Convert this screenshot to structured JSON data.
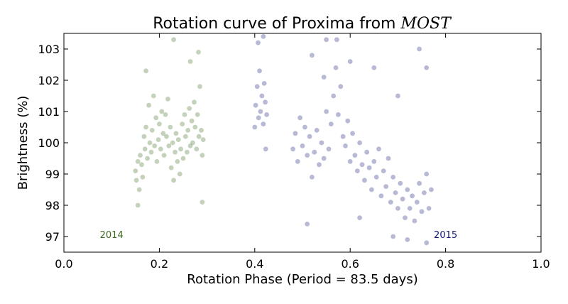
{
  "chart_data": {
    "type": "scatter",
    "title": "Rotation curve of Proxima from ",
    "title_italic": "MOST",
    "xlabel": "Rotation Phase (Period = 83.5 days)",
    "ylabel": "Brightness (%)",
    "xlim": [
      0.0,
      1.0
    ],
    "ylim": [
      96.5,
      103.5
    ],
    "xticks": [
      0.0,
      0.2,
      0.4,
      0.6,
      0.8,
      1.0
    ],
    "xtick_labels": [
      "0.0",
      "0.2",
      "0.4",
      "0.6",
      "0.8",
      "1.0"
    ],
    "yticks": [
      97,
      98,
      99,
      100,
      101,
      102,
      103
    ],
    "ytick_labels": [
      "97",
      "98",
      "99",
      "100",
      "101",
      "102",
      "103"
    ],
    "grid": false,
    "legend": "none",
    "series": [
      {
        "name": "2014",
        "color": "#3f6b1e",
        "label_x": 0.1,
        "label_y": 97.05,
        "points": [
          [
            0.15,
            99.1
          ],
          [
            0.152,
            98.8
          ],
          [
            0.155,
            99.4
          ],
          [
            0.158,
            98.5
          ],
          [
            0.16,
            99.6
          ],
          [
            0.163,
            99.3
          ],
          [
            0.165,
            98.9
          ],
          [
            0.168,
            100.2
          ],
          [
            0.17,
            99.8
          ],
          [
            0.172,
            100.5
          ],
          [
            0.175,
            99.5
          ],
          [
            0.178,
            101.2
          ],
          [
            0.18,
            100.0
          ],
          [
            0.183,
            99.7
          ],
          [
            0.185,
            100.4
          ],
          [
            0.188,
            101.5
          ],
          [
            0.19,
            99.9
          ],
          [
            0.193,
            100.8
          ],
          [
            0.195,
            99.4
          ],
          [
            0.198,
            100.1
          ],
          [
            0.2,
            100.6
          ],
          [
            0.203,
            99.8
          ],
          [
            0.205,
            101.0
          ],
          [
            0.208,
            100.3
          ],
          [
            0.21,
            99.6
          ],
          [
            0.213,
            100.9
          ],
          [
            0.215,
            100.2
          ],
          [
            0.218,
            101.4
          ],
          [
            0.22,
            99.9
          ],
          [
            0.223,
            100.5
          ],
          [
            0.225,
            99.2
          ],
          [
            0.228,
            100.0
          ],
          [
            0.23,
            98.8
          ],
          [
            0.233,
            99.7
          ],
          [
            0.235,
            100.3
          ],
          [
            0.238,
            99.4
          ],
          [
            0.24,
            100.1
          ],
          [
            0.243,
            99.0
          ],
          [
            0.245,
            99.8
          ],
          [
            0.248,
            100.6
          ],
          [
            0.25,
            99.5
          ],
          [
            0.253,
            100.9
          ],
          [
            0.255,
            100.2
          ],
          [
            0.258,
            99.7
          ],
          [
            0.26,
            100.4
          ],
          [
            0.263,
            101.1
          ],
          [
            0.265,
            99.9
          ],
          [
            0.268,
            100.7
          ],
          [
            0.27,
            100.0
          ],
          [
            0.273,
            101.3
          ],
          [
            0.275,
            100.5
          ],
          [
            0.278,
            99.8
          ],
          [
            0.28,
            100.9
          ],
          [
            0.283,
            100.2
          ],
          [
            0.285,
            101.8
          ],
          [
            0.288,
            100.4
          ],
          [
            0.29,
            99.6
          ],
          [
            0.292,
            100.1
          ],
          [
            0.172,
            102.3
          ],
          [
            0.23,
            103.3
          ],
          [
            0.155,
            98.0
          ],
          [
            0.29,
            98.1
          ],
          [
            0.265,
            102.6
          ],
          [
            0.282,
            102.9
          ]
        ]
      },
      {
        "name": "2015",
        "color": "#101874",
        "label_x": 0.8,
        "label_y": 97.05,
        "points": [
          [
            0.4,
            100.5
          ],
          [
            0.402,
            101.2
          ],
          [
            0.405,
            101.8
          ],
          [
            0.408,
            100.8
          ],
          [
            0.41,
            102.3
          ],
          [
            0.412,
            101.0
          ],
          [
            0.415,
            101.5
          ],
          [
            0.418,
            100.6
          ],
          [
            0.42,
            101.9
          ],
          [
            0.422,
            101.3
          ],
          [
            0.425,
            100.9
          ],
          [
            0.407,
            103.2
          ],
          [
            0.418,
            103.4
          ],
          [
            0.423,
            99.8
          ],
          [
            0.48,
            99.8
          ],
          [
            0.485,
            100.3
          ],
          [
            0.49,
            99.4
          ],
          [
            0.495,
            100.8
          ],
          [
            0.5,
            99.9
          ],
          [
            0.505,
            100.5
          ],
          [
            0.51,
            99.6
          ],
          [
            0.515,
            100.2
          ],
          [
            0.52,
            98.9
          ],
          [
            0.525,
            99.7
          ],
          [
            0.53,
            100.4
          ],
          [
            0.535,
            99.3
          ],
          [
            0.54,
            100.0
          ],
          [
            0.545,
            99.5
          ],
          [
            0.55,
            101.0
          ],
          [
            0.555,
            99.8
          ],
          [
            0.56,
            100.6
          ],
          [
            0.565,
            101.5
          ],
          [
            0.57,
            102.4
          ],
          [
            0.572,
            103.3
          ],
          [
            0.575,
            100.9
          ],
          [
            0.58,
            101.8
          ],
          [
            0.585,
            100.2
          ],
          [
            0.59,
            99.9
          ],
          [
            0.595,
            100.7
          ],
          [
            0.6,
            99.4
          ],
          [
            0.605,
            100.3
          ],
          [
            0.61,
            99.6
          ],
          [
            0.615,
            99.1
          ],
          [
            0.62,
            100.0
          ],
          [
            0.625,
            99.3
          ],
          [
            0.63,
            98.8
          ],
          [
            0.635,
            99.7
          ],
          [
            0.64,
            99.2
          ],
          [
            0.645,
            98.5
          ],
          [
            0.65,
            99.4
          ],
          [
            0.655,
            98.9
          ],
          [
            0.66,
            99.8
          ],
          [
            0.665,
            98.3
          ],
          [
            0.67,
            99.1
          ],
          [
            0.675,
            98.6
          ],
          [
            0.68,
            99.5
          ],
          [
            0.685,
            98.1
          ],
          [
            0.69,
            98.9
          ],
          [
            0.695,
            98.4
          ],
          [
            0.7,
            97.9
          ],
          [
            0.705,
            98.7
          ],
          [
            0.71,
            98.2
          ],
          [
            0.715,
            97.6
          ],
          [
            0.72,
            98.5
          ],
          [
            0.725,
            97.9
          ],
          [
            0.73,
            98.3
          ],
          [
            0.735,
            97.5
          ],
          [
            0.74,
            98.1
          ],
          [
            0.745,
            98.7
          ],
          [
            0.75,
            97.8
          ],
          [
            0.755,
            98.4
          ],
          [
            0.76,
            99.0
          ],
          [
            0.765,
            97.9
          ],
          [
            0.77,
            98.5
          ],
          [
            0.52,
            102.8
          ],
          [
            0.545,
            102.1
          ],
          [
            0.6,
            102.6
          ],
          [
            0.65,
            102.4
          ],
          [
            0.7,
            101.5
          ],
          [
            0.745,
            103.0
          ],
          [
            0.76,
            102.4
          ],
          [
            0.51,
            97.4
          ],
          [
            0.62,
            97.6
          ],
          [
            0.69,
            97.0
          ],
          [
            0.76,
            96.8
          ],
          [
            0.72,
            96.9
          ],
          [
            0.55,
            103.3
          ]
        ]
      }
    ]
  }
}
